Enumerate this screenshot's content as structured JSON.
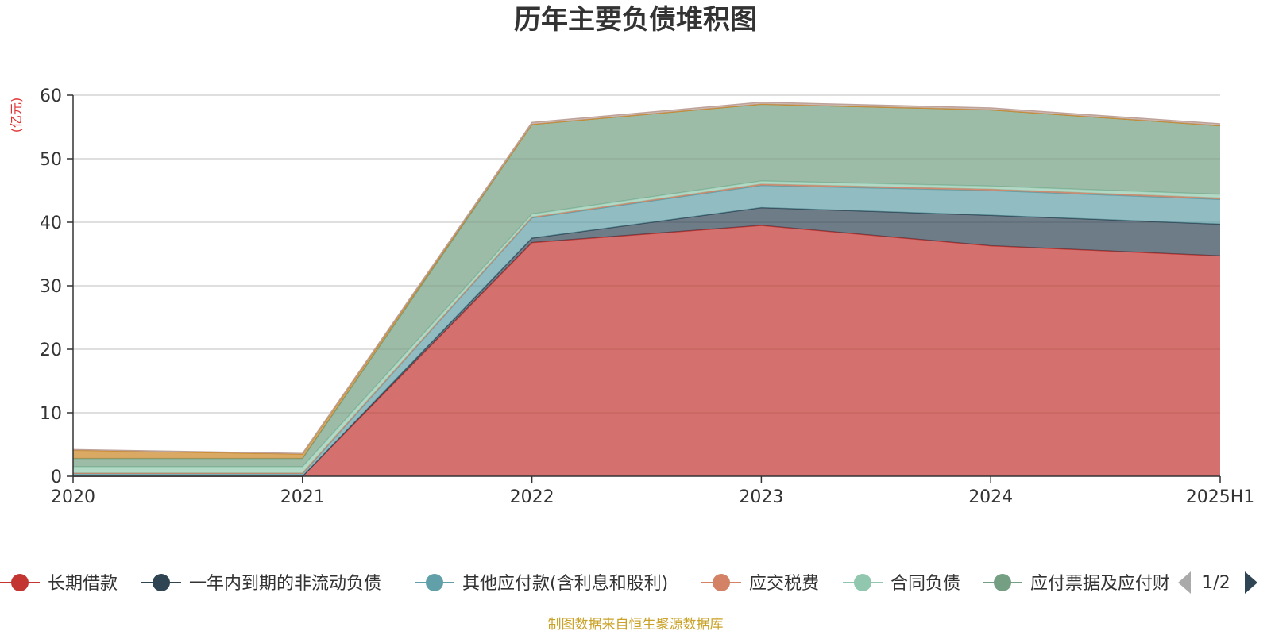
{
  "chart_data": {
    "type": "area",
    "stacked": true,
    "title": "历年主要负债堆积图",
    "unit_label": "(亿元)",
    "x": [
      "2020",
      "2021",
      "2022",
      "2023",
      "2024",
      "2025H1"
    ],
    "ylim": [
      0,
      60
    ],
    "yticks": [
      0,
      10,
      20,
      30,
      40,
      50,
      60
    ],
    "grid": true,
    "series": [
      {
        "name": "长期借款",
        "color": "#c23531",
        "values": [
          0,
          0,
          36.8,
          39.5,
          36.3,
          34.7
        ]
      },
      {
        "name": "一年内到期的非流动负债",
        "color": "#2f4554",
        "values": [
          0,
          0,
          0.7,
          2.8,
          4.8,
          5.0
        ]
      },
      {
        "name": "其他应付款(含利息和股利)",
        "color": "#61a0a8",
        "values": [
          0.4,
          0.4,
          3.2,
          3.5,
          3.9,
          3.9
        ]
      },
      {
        "name": "应交税费",
        "color": "#d48265",
        "values": [
          0.1,
          0.1,
          0.1,
          0.2,
          0.2,
          0.2
        ]
      },
      {
        "name": "合同负债",
        "color": "#91c7ae",
        "values": [
          1.0,
          1.0,
          0.5,
          0.5,
          0.5,
          0.6
        ]
      },
      {
        "name": "应付票据及应付账款",
        "color": "#749f83",
        "values": [
          1.3,
          1.3,
          14.1,
          12.1,
          12.0,
          10.8
        ]
      },
      {
        "name": "",
        "color": "#ca8622",
        "values": [
          1.3,
          0.7,
          0.0,
          0.0,
          0.0,
          0.0
        ]
      },
      {
        "name": "",
        "color": "#bda29a",
        "values": [
          0.1,
          0.1,
          0.3,
          0.3,
          0.3,
          0.3
        ]
      }
    ],
    "legend": {
      "position": "bottom",
      "items": [
        "长期借款",
        "一年内到期的非流动负债",
        "其他应付款(含利息和股利)",
        "应交税费",
        "合同负债",
        "应付票据及应付财"
      ],
      "page": "1/2"
    },
    "source": "制图数据来自恒生聚源数据库",
    "colors": {
      "unit": "#e03030",
      "source": "#c9a227",
      "axis": "#333333",
      "grid": "#cccccc"
    }
  }
}
